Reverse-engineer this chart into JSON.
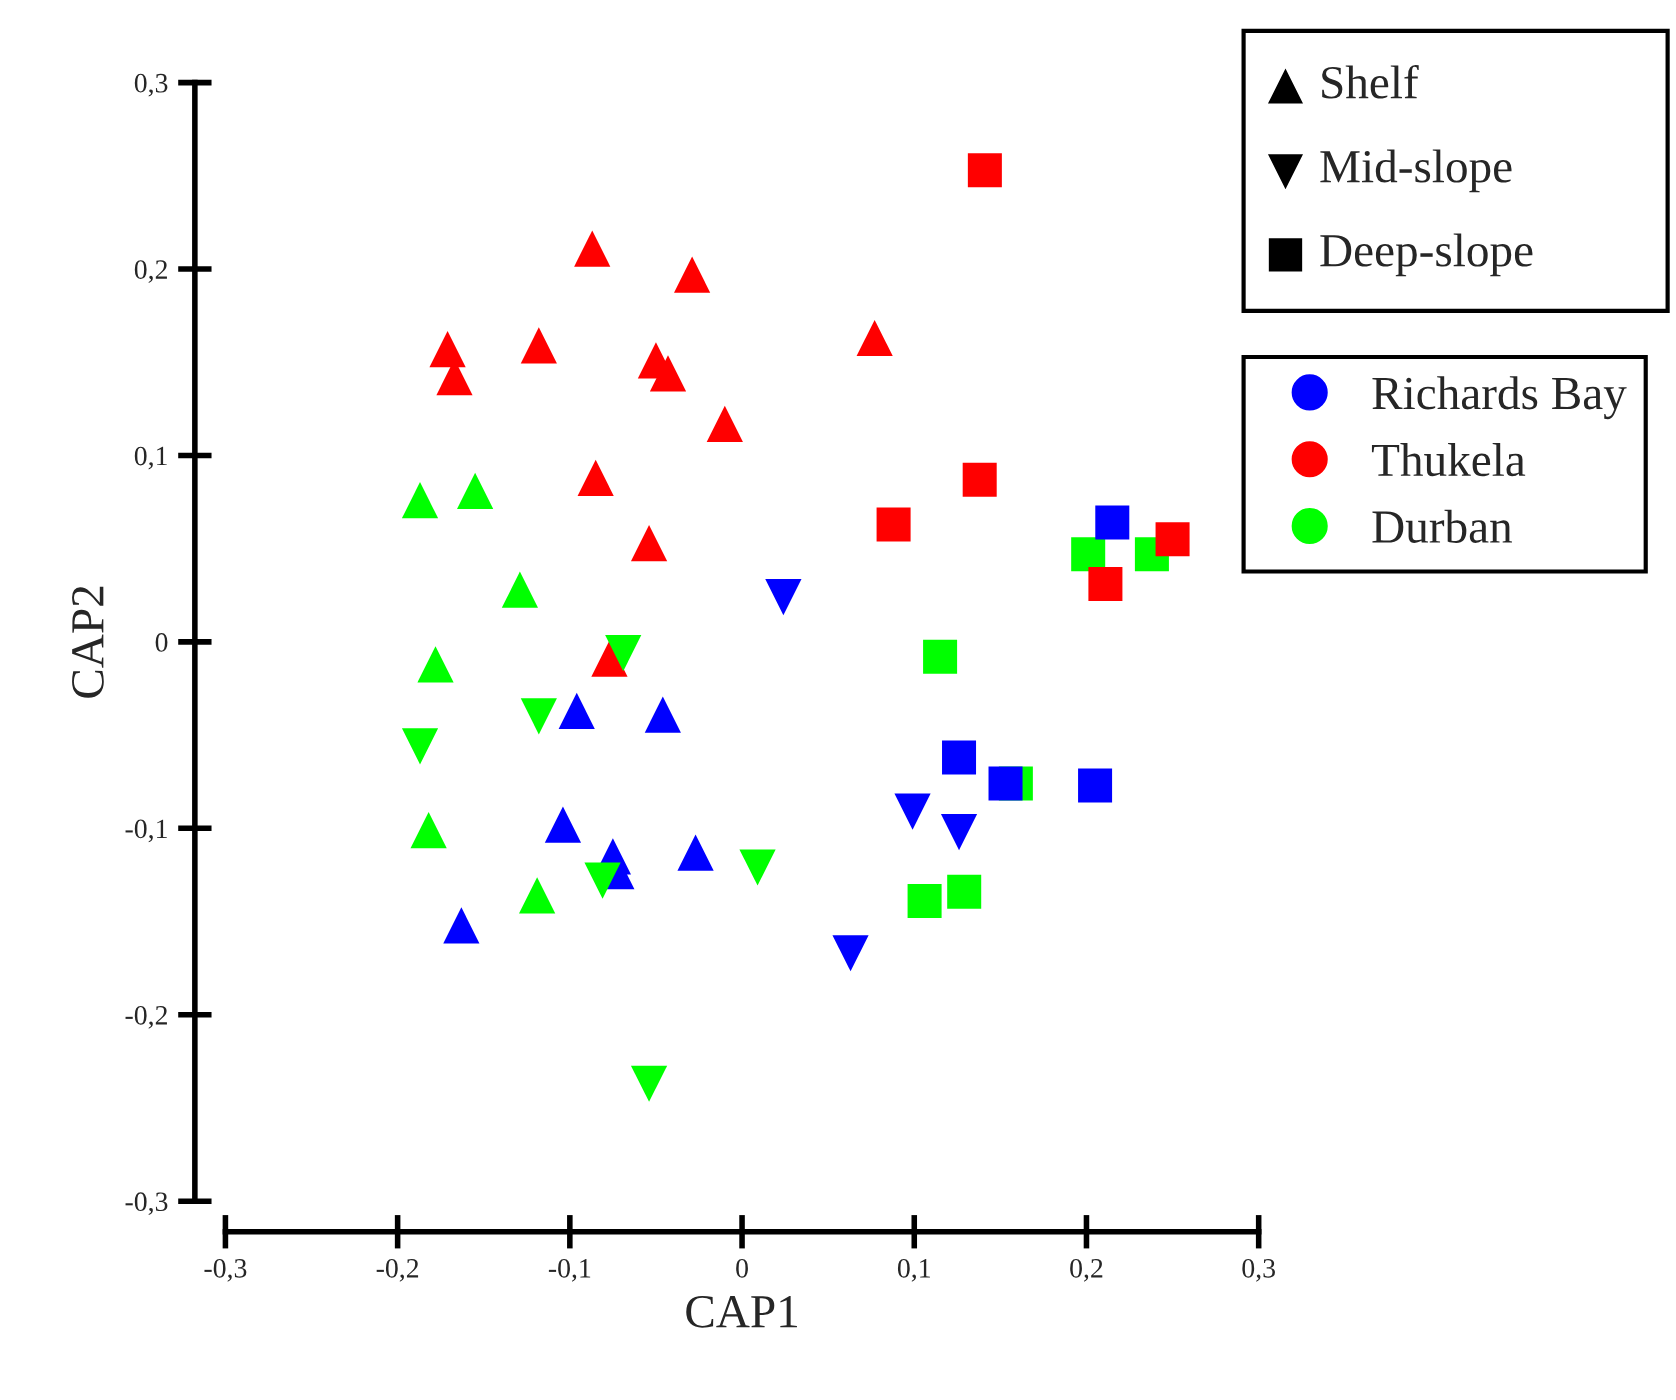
{
  "chart_data": {
    "type": "scatter",
    "xlabel": "CAP1",
    "ylabel": "CAP2",
    "xlim": [
      -0.3,
      0.3
    ],
    "ylim": [
      -0.3,
      0.3
    ],
    "xticks": [
      {
        "value": -0.3,
        "label": "-0,3"
      },
      {
        "value": -0.2,
        "label": "-0,2"
      },
      {
        "value": -0.1,
        "label": "-0,1"
      },
      0,
      {
        "value": 0.1,
        "label": "0,1"
      },
      {
        "value": 0.2,
        "label": "0,2"
      },
      {
        "value": 0.3,
        "label": "0,3"
      }
    ],
    "yticks": [
      {
        "value": -0.3,
        "label": "-0,3"
      },
      {
        "value": -0.2,
        "label": "-0,2"
      },
      {
        "value": -0.1,
        "label": "-0,1"
      },
      0,
      {
        "value": 0.1,
        "label": "0,1"
      },
      {
        "value": 0.2,
        "label": "0,2"
      },
      {
        "value": 0.3,
        "label": "0,3"
      }
    ],
    "grid": false,
    "legend": "right",
    "annotations": [
      "Shelf",
      "Mid-slope",
      "Deep-slope"
    ],
    "series": [
      {
        "name": "Thukela",
        "marker": "triangle",
        "color": "#ff0000",
        "x": [
          -0.087,
          -0.029,
          -0.171,
          -0.167,
          -0.118,
          -0.05,
          -0.043,
          -0.01,
          -0.085,
          -0.054,
          0.077,
          -0.077
        ],
        "values": [
          0.211,
          0.197,
          0.157,
          0.142,
          0.159,
          0.151,
          0.144,
          0.117,
          0.088,
          0.053,
          0.163,
          -0.009
        ]
      },
      {
        "name": "Durban",
        "marker": "triangle",
        "color": "#00ff00",
        "x": [
          -0.187,
          -0.155,
          -0.129,
          -0.178,
          -0.182,
          -0.119
        ],
        "values": [
          0.076,
          0.081,
          0.028,
          -0.012,
          -0.101,
          -0.136
        ]
      },
      {
        "name": "Richards Bay",
        "marker": "triangle",
        "color": "#0000ff",
        "x": [
          -0.096,
          -0.046,
          -0.104,
          -0.075,
          -0.073,
          -0.027,
          -0.163
        ],
        "values": [
          -0.037,
          -0.039,
          -0.098,
          -0.115,
          -0.123,
          -0.113,
          -0.152
        ]
      },
      {
        "marker": "triangle_down",
        "color": "#00ff00",
        "x": [
          -0.069,
          -0.118,
          -0.187,
          -0.081,
          0.009,
          -0.054
        ],
        "values": [
          -0.006,
          -0.04,
          -0.056,
          -0.128,
          -0.121,
          -0.237
        ]
      },
      {
        "marker": "triangle_down",
        "color": "#0000ff",
        "x": [
          0.024,
          0.099,
          0.126,
          0.063
        ],
        "values": [
          0.024,
          -0.091,
          -0.102,
          -0.167
        ]
      },
      {
        "marker": "square",
        "color": "#00ff00",
        "x": [
          0.201,
          0.238,
          0.115,
          0.159,
          0.106,
          0.129
        ],
        "values": [
          0.047,
          0.047,
          -0.008,
          -0.076,
          -0.139,
          -0.134
        ]
      },
      {
        "marker": "square",
        "color": "#0000ff",
        "x": [
          0.215,
          0.126,
          0.153,
          0.205
        ],
        "values": [
          0.064,
          -0.062,
          -0.076,
          -0.077
        ]
      },
      {
        "marker": "square",
        "color": "#ff0000",
        "x": [
          0.141,
          0.138,
          0.088,
          0.25,
          0.211
        ],
        "values": [
          0.253,
          0.087,
          0.063,
          0.055,
          0.031
        ]
      }
    ]
  }
}
